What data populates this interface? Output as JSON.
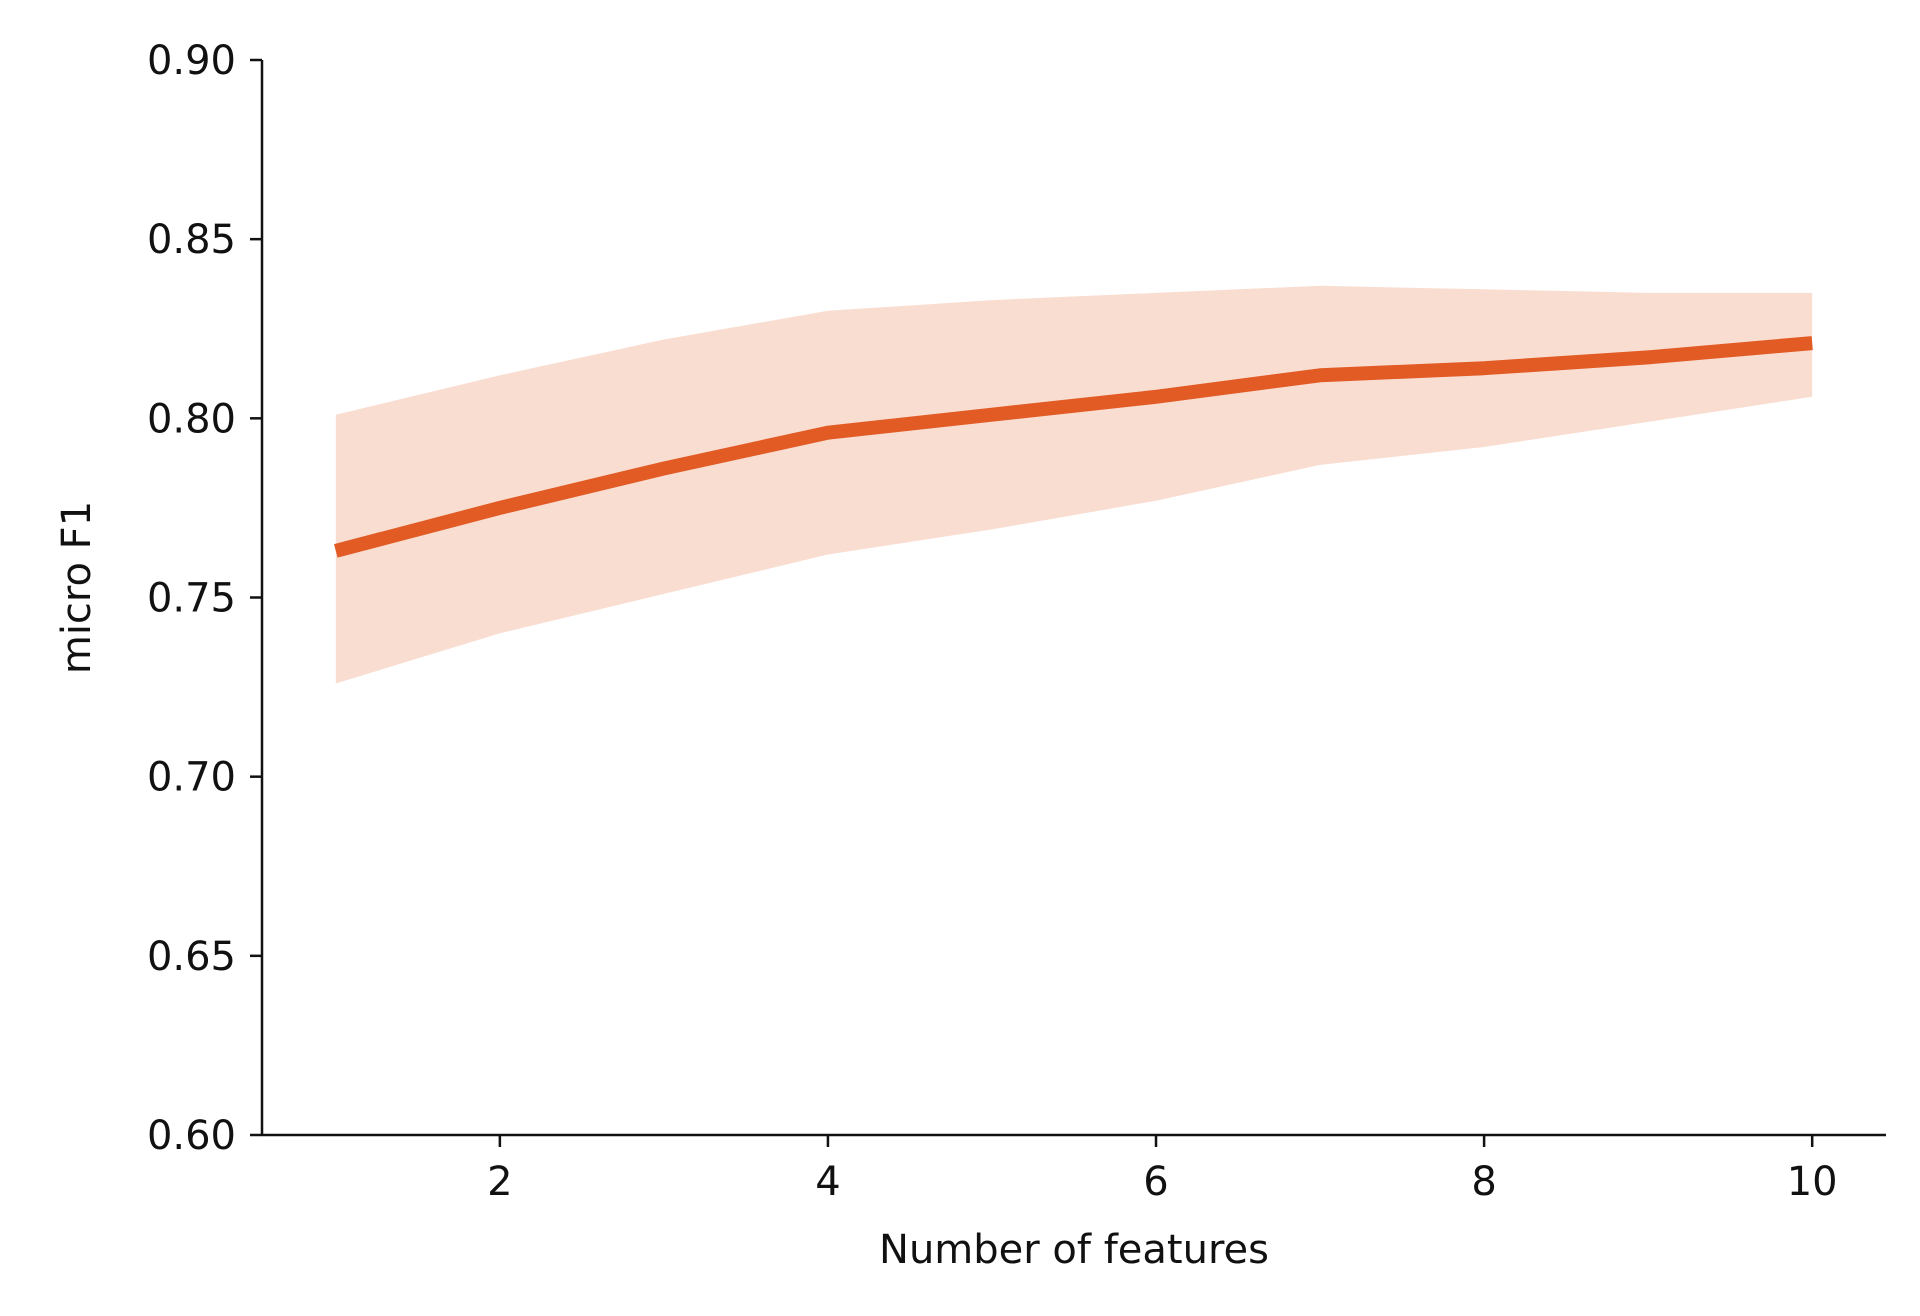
{
  "chart_data": {
    "type": "line",
    "title": "",
    "xlabel": "Number of features",
    "ylabel": "micro F1",
    "xlim": [
      0.55,
      10.45
    ],
    "ylim": [
      0.6,
      0.9
    ],
    "x_ticks": [
      2,
      4,
      6,
      8,
      10
    ],
    "x_tick_labels": [
      "2",
      "4",
      "6",
      "8",
      "10"
    ],
    "y_ticks": [
      0.6,
      0.65,
      0.7,
      0.75,
      0.8,
      0.85,
      0.9
    ],
    "y_tick_labels": [
      "0.60",
      "0.65",
      "0.70",
      "0.75",
      "0.80",
      "0.85",
      "0.90"
    ],
    "grid": false,
    "series": [
      {
        "x": [
          1,
          2,
          3,
          4,
          5,
          6,
          7,
          8,
          9,
          10
        ],
        "values": [
          0.763,
          0.775,
          0.786,
          0.796,
          0.801,
          0.806,
          0.812,
          0.814,
          0.817,
          0.821
        ],
        "lower": [
          0.726,
          0.74,
          0.751,
          0.762,
          0.769,
          0.777,
          0.787,
          0.792,
          0.799,
          0.806
        ],
        "upper": [
          0.801,
          0.812,
          0.822,
          0.83,
          0.833,
          0.835,
          0.837,
          0.836,
          0.835,
          0.835
        ],
        "color": "#e25a24",
        "band_color": "#f9ddd1"
      }
    ]
  }
}
